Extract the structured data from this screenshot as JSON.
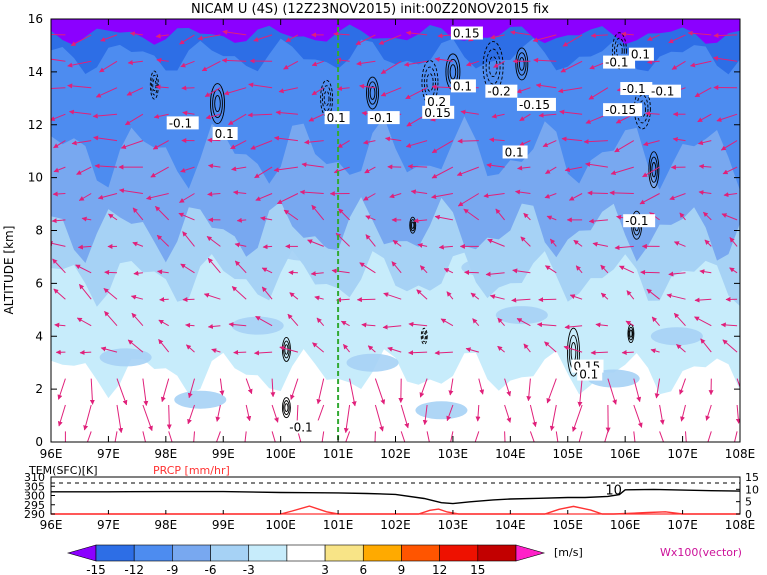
{
  "chart_data": [
    {
      "type": "heatmap",
      "title": "NICAM U (4S) (12Z23NOV2015) init:00Z20NOV2015 fix",
      "ylabel": "ALTITUDE [km]",
      "xlim": [
        96,
        108
      ],
      "ylim": [
        0,
        16
      ],
      "x_ticks": [
        "96E",
        "97E",
        "98E",
        "99E",
        "100E",
        "101E",
        "102E",
        "103E",
        "104E",
        "105E",
        "106E",
        "107E",
        "108E"
      ],
      "y_ticks": [
        "0",
        "2",
        "4",
        "6",
        "8",
        "10",
        "12",
        "14",
        "16"
      ],
      "grid": false,
      "reference_line_x": 101,
      "reference_line_color": "#33aa33",
      "contour_labels": [
        {
          "x": 98.05,
          "y": 11.9,
          "text": "-0.1"
        },
        {
          "x": 98.85,
          "y": 11.5,
          "text": "0.1"
        },
        {
          "x": 100.8,
          "y": 12.1,
          "text": "0.1"
        },
        {
          "x": 101.55,
          "y": 12.1,
          "text": "-0.1"
        },
        {
          "x": 102.5,
          "y": 12.3,
          "text": "0.15"
        },
        {
          "x": 102.55,
          "y": 12.7,
          "text": "0.2"
        },
        {
          "x": 103.0,
          "y": 15.3,
          "text": "0.15"
        },
        {
          "x": 103.0,
          "y": 13.3,
          "text": "0.1"
        },
        {
          "x": 103.6,
          "y": 13.1,
          "text": "-0.2"
        },
        {
          "x": 104.15,
          "y": 12.6,
          "text": "-0.15"
        },
        {
          "x": 103.9,
          "y": 10.8,
          "text": "0.1"
        },
        {
          "x": 105.65,
          "y": 14.2,
          "text": "-0.1"
        },
        {
          "x": 106.1,
          "y": 14.5,
          "text": "0.1"
        },
        {
          "x": 105.95,
          "y": 13.2,
          "text": "-0.1"
        },
        {
          "x": 106.45,
          "y": 13.1,
          "text": "-0.1"
        },
        {
          "x": 105.65,
          "y": 12.4,
          "text": "-0.15"
        },
        {
          "x": 106.0,
          "y": 8.2,
          "text": "-0.1"
        },
        {
          "x": 105.1,
          "y": 2.7,
          "text": "0.15"
        },
        {
          "x": 105.2,
          "y": 2.4,
          "text": "0.1"
        },
        {
          "x": 100.15,
          "y": 0.4,
          "text": "-0.1"
        }
      ]
    },
    {
      "type": "line",
      "xlim": [
        96,
        108
      ],
      "x_ticks": [
        "96E",
        "97E",
        "98E",
        "99E",
        "100E",
        "101E",
        "102E",
        "103E",
        "104E",
        "105E",
        "106E",
        "107E",
        "108E"
      ],
      "left_axis": {
        "label": "TEM(SFC)[K]",
        "ticks": [
          "290",
          "295",
          "300",
          "305",
          "310"
        ],
        "ylim": [
          290,
          310
        ]
      },
      "right_axis": {
        "label": "PRCP [mm/hr]",
        "ticks": [
          "0",
          "5",
          "10",
          "15"
        ],
        "ylim": [
          0,
          15
        ]
      },
      "annotation": "10",
      "series": [
        {
          "name": "TEM(SFC)[K]",
          "color": "#000000",
          "x": [
            96,
            97,
            98,
            99,
            100,
            100.5,
            101,
            101.5,
            102,
            102.5,
            102.8,
            103.0,
            103.3,
            103.7,
            104.0,
            104.5,
            105.0,
            105.3,
            105.7,
            105.9,
            106.0,
            106.5,
            107.0,
            107.5,
            108
          ],
          "y": [
            302,
            302,
            302.1,
            302.1,
            301.6,
            301.5,
            301.4,
            301.1,
            300.6,
            298.4,
            296.1,
            295.6,
            296.6,
            297.6,
            298.1,
            298.5,
            298.9,
            298.9,
            299.5,
            300.5,
            303.1,
            303.3,
            302.9,
            302.6,
            302.4
          ]
        },
        {
          "name": "PRCP [mm/hr]",
          "color": "#ff3333",
          "x": [
            96,
            100.0,
            100.2,
            100.5,
            100.8,
            101.0,
            102.4,
            102.6,
            102.75,
            102.9,
            103.1,
            104.6,
            104.85,
            105.1,
            105.4,
            105.6,
            105.8,
            106.4,
            106.7,
            107.0,
            108
          ],
          "y": [
            0,
            0,
            1.2,
            3.2,
            0.9,
            0,
            0,
            1.5,
            2.0,
            0.8,
            0,
            0,
            1.9,
            3.1,
            1.6,
            0,
            0,
            0.6,
            0.9,
            0,
            0
          ]
        }
      ]
    }
  ],
  "colorbar": {
    "ticks": [
      "-15",
      "-12",
      "-9",
      "-6",
      "-3",
      "3",
      "6",
      "9",
      "12",
      "15"
    ],
    "unit": "[m/s]",
    "colors": [
      "#8b00ff",
      "#2d6ee6",
      "#4d8cf0",
      "#78a8f0",
      "#a6d2f5",
      "#c7ecfb",
      "#ffffff",
      "#f8e487",
      "#ffaa00",
      "#ff5500",
      "#ee1100",
      "#c20000",
      "#ff20c8"
    ]
  },
  "vector_note": "Wx100(vector)",
  "style": {
    "vector_color": "#e0207a",
    "reference_line_color": "#33aa33"
  }
}
